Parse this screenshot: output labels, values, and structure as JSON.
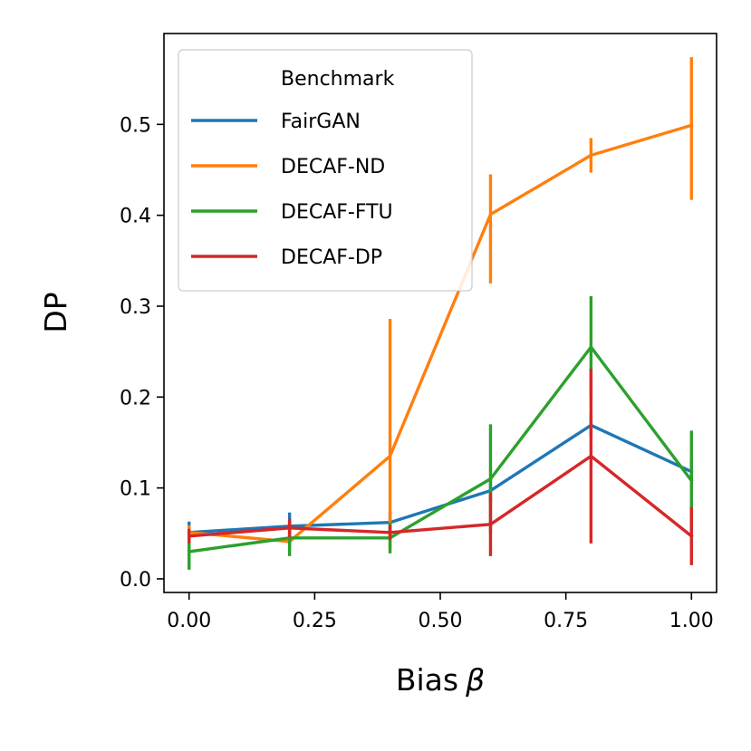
{
  "chart_data": {
    "type": "line",
    "xlabel": "Bias",
    "xlabel_symbol": "β",
    "ylabel": "DP",
    "xlim": [
      -0.05,
      1.05
    ],
    "ylim": [
      -0.015,
      0.6
    ],
    "x_ticks": [
      0.0,
      0.25,
      0.5,
      0.75,
      1.0
    ],
    "x_tick_labels": [
      "0.00",
      "0.25",
      "0.50",
      "0.75",
      "1.00"
    ],
    "y_ticks": [
      0.0,
      0.1,
      0.2,
      0.3,
      0.4,
      0.5
    ],
    "y_tick_labels": [
      "0.0",
      "0.1",
      "0.2",
      "0.3",
      "0.4",
      "0.5"
    ],
    "grid": false,
    "legend": {
      "title": "Benchmark",
      "placement": "top-left"
    },
    "x": [
      0.0,
      0.2,
      0.4,
      0.6,
      0.8,
      1.0
    ],
    "series": [
      {
        "name": "FairGAN",
        "color": "#1f77b4",
        "values": [
          0.051,
          0.058,
          0.062,
          0.097,
          0.169,
          0.118
        ],
        "err_low": [
          0.039,
          0.043,
          0.05,
          0.084,
          0.157,
          0.106
        ],
        "err_high": [
          0.063,
          0.073,
          0.074,
          0.11,
          0.181,
          0.13
        ]
      },
      {
        "name": "DECAF-ND",
        "color": "#ff7f0e",
        "values": [
          0.051,
          0.041,
          0.135,
          0.401,
          0.466,
          0.499
        ],
        "err_low": [
          0.043,
          0.033,
          0.033,
          0.325,
          0.447,
          0.417
        ],
        "err_high": [
          0.059,
          0.049,
          0.286,
          0.445,
          0.485,
          0.574
        ]
      },
      {
        "name": "DECAF-FTU",
        "color": "#2ca02c",
        "values": [
          0.03,
          0.045,
          0.045,
          0.11,
          0.255,
          0.108
        ],
        "err_low": [
          0.01,
          0.025,
          0.028,
          0.05,
          0.199,
          0.053
        ],
        "err_high": [
          0.05,
          0.065,
          0.062,
          0.17,
          0.311,
          0.163
        ]
      },
      {
        "name": "DECAF-DP",
        "color": "#d62728",
        "values": [
          0.047,
          0.056,
          0.051,
          0.06,
          0.135,
          0.047
        ],
        "err_low": [
          0.039,
          0.046,
          0.043,
          0.025,
          0.039,
          0.015
        ],
        "err_high": [
          0.055,
          0.066,
          0.059,
          0.095,
          0.231,
          0.079
        ]
      }
    ]
  }
}
